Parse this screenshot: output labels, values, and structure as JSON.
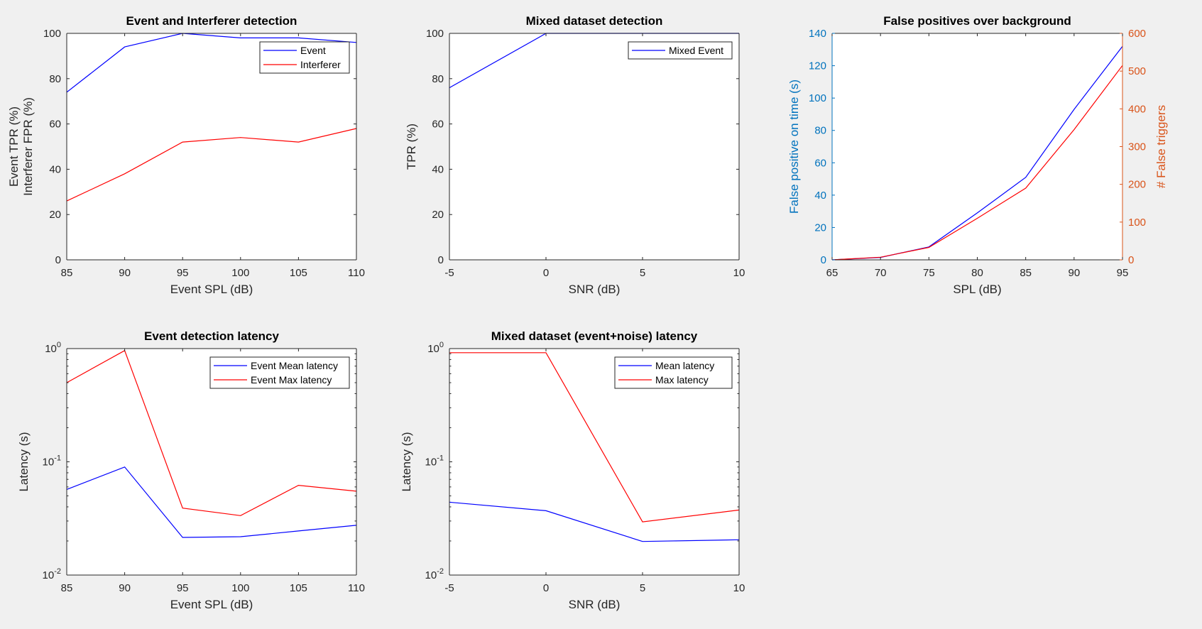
{
  "figure": {
    "background": "#f0f0f0",
    "colors": {
      "blue": "#0000ff",
      "red": "#ff0000",
      "left_axis": "#0072bd",
      "right_axis": "#d95319",
      "axes": "#262626"
    }
  },
  "chart_data": [
    {
      "id": "p1",
      "type": "line",
      "title": "Event and Interferer detection",
      "xlabel": "Event SPL (dB)",
      "ylabel": [
        "Event TPR (%)",
        "Interferer FPR (%)"
      ],
      "xlim": [
        85,
        110
      ],
      "ylim": [
        0,
        100
      ],
      "xticks": [
        85,
        90,
        95,
        100,
        105,
        110
      ],
      "yticks": [
        0,
        20,
        40,
        60,
        80,
        100
      ],
      "legend": "top-right",
      "series": [
        {
          "name": "Event",
          "color": "#0000ff",
          "x": [
            85,
            90,
            95,
            100,
            105,
            110
          ],
          "y": [
            74,
            94,
            100,
            98,
            98,
            96
          ]
        },
        {
          "name": "Interferer",
          "color": "#ff0000",
          "x": [
            85,
            90,
            95,
            100,
            105,
            110
          ],
          "y": [
            26,
            38,
            52,
            54,
            52,
            58
          ]
        }
      ]
    },
    {
      "id": "p2",
      "type": "line",
      "title": "Mixed dataset detection",
      "xlabel": "SNR (dB)",
      "ylabel": [
        "TPR (%)"
      ],
      "xlim": [
        -5,
        10
      ],
      "ylim": [
        0,
        100
      ],
      "xticks": [
        -5,
        0,
        5,
        10
      ],
      "yticks": [
        0,
        20,
        40,
        60,
        80,
        100
      ],
      "legend": "top-right",
      "series": [
        {
          "name": "Mixed Event",
          "color": "#0000ff",
          "x": [
            -5,
            0,
            5,
            10
          ],
          "y": [
            76,
            100,
            100,
            100
          ]
        }
      ]
    },
    {
      "id": "p3",
      "type": "line",
      "title": "False positives over background",
      "xlabel": "SPL (dB)",
      "ylabel": [
        "False positive on time (s)"
      ],
      "ylabel_right": "# False triggers",
      "xlim": [
        65,
        95
      ],
      "ylim": [
        0,
        140
      ],
      "ylim_right": [
        0,
        600
      ],
      "xticks": [
        65,
        70,
        75,
        80,
        85,
        90,
        95
      ],
      "yticks": [
        0,
        20,
        40,
        60,
        80,
        100,
        120,
        140
      ],
      "yticks_right": [
        0,
        100,
        200,
        300,
        400,
        500,
        600
      ],
      "legend": "none",
      "series": [
        {
          "axis": "left",
          "color": "#0000ff",
          "x": [
            65,
            70,
            75,
            80,
            85,
            90,
            95
          ],
          "y": [
            0,
            1.5,
            8,
            29,
            51,
            93,
            132
          ]
        },
        {
          "axis": "right",
          "color": "#ff0000",
          "x": [
            65,
            70,
            75,
            80,
            85,
            90,
            95
          ],
          "y": [
            0,
            7,
            33,
            110,
            190,
            345,
            515
          ]
        }
      ]
    },
    {
      "id": "p4",
      "type": "line",
      "scale_y": "log",
      "title": "Event detection latency",
      "xlabel": "Event SPL (dB)",
      "ylabel": [
        "Latency (s)"
      ],
      "xlim": [
        85,
        110
      ],
      "ylim": [
        0.01,
        1
      ],
      "xticks": [
        85,
        90,
        95,
        100,
        105,
        110
      ],
      "yticks": [
        0.01,
        0.1,
        1
      ],
      "legend": "top-right",
      "series": [
        {
          "name": "Event Mean latency",
          "color": "#0000ff",
          "x": [
            85,
            90,
            95,
            100,
            105,
            110
          ],
          "y": [
            0.057,
            0.09,
            0.0215,
            0.0218,
            0.0245,
            0.0275
          ]
        },
        {
          "name": "Event Max latency",
          "color": "#ff0000",
          "x": [
            85,
            90,
            95,
            100,
            105,
            110
          ],
          "y": [
            0.5,
            0.96,
            0.039,
            0.0335,
            0.062,
            0.055
          ]
        }
      ]
    },
    {
      "id": "p5",
      "type": "line",
      "scale_y": "log",
      "title": "Mixed dataset (event+noise) latency",
      "xlabel": "SNR (dB)",
      "ylabel": [
        "Latency (s)"
      ],
      "xlim": [
        -5,
        10
      ],
      "ylim": [
        0.01,
        1
      ],
      "xticks": [
        -5,
        0,
        5,
        10
      ],
      "yticks": [
        0.01,
        0.1,
        1
      ],
      "legend": "top-right",
      "series": [
        {
          "name": "Mean latency",
          "color": "#0000ff",
          "x": [
            -5,
            0,
            5,
            10
          ],
          "y": [
            0.044,
            0.037,
            0.0198,
            0.0205
          ]
        },
        {
          "name": "Max latency",
          "color": "#ff0000",
          "x": [
            -5,
            0,
            5,
            10
          ],
          "y": [
            0.92,
            0.92,
            0.0295,
            0.0375
          ]
        }
      ]
    }
  ]
}
